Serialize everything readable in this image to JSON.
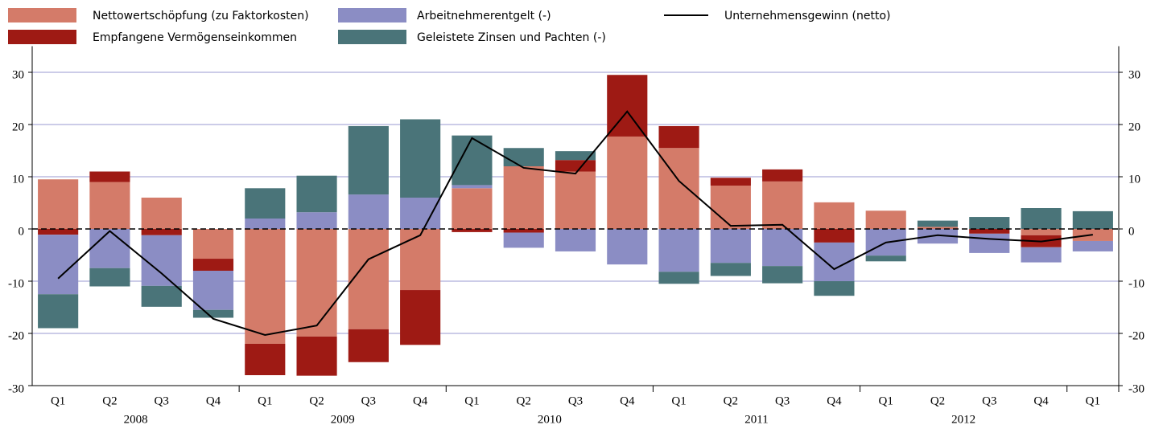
{
  "chart_data": {
    "type": "stacked-bar-line",
    "groups": [
      {
        "label": "2008",
        "categories": [
          "Q1",
          "Q2",
          "Q3",
          "Q4"
        ]
      },
      {
        "label": "2009",
        "categories": [
          "Q1",
          "Q2",
          "Q3",
          "Q4"
        ]
      },
      {
        "label": "2010",
        "categories": [
          "Q1",
          "Q2",
          "Q3",
          "Q4"
        ]
      },
      {
        "label": "2011",
        "categories": [
          "Q1",
          "Q2",
          "Q3",
          "Q4"
        ]
      },
      {
        "label": "2012",
        "categories": [
          "Q1",
          "Q2",
          "Q3",
          "Q4"
        ]
      },
      {
        "label": null,
        "categories": [
          "Q1"
        ]
      }
    ],
    "series": [
      {
        "name": "Nettowertschöpfung (zu Faktorkosten)",
        "color": "#d47b69",
        "kind": "bar",
        "values": [
          9.5,
          9,
          6,
          -5.7,
          -22,
          -20.6,
          -19.2,
          -11.7,
          7.8,
          12,
          11,
          17.7,
          15.5,
          8.3,
          9.1,
          5.1,
          3.5,
          0.4,
          0,
          -1.2,
          -2.3
        ]
      },
      {
        "name": "Empfangene Vermögenseinkommen",
        "color": "#9e1a14",
        "kind": "bar",
        "values": [
          -1.1,
          2,
          -1.2,
          -2.3,
          -6,
          -7.5,
          -6.3,
          -10.5,
          -0.6,
          -0.7,
          2.2,
          11.8,
          4.2,
          1.5,
          2.3,
          -2.6,
          0,
          0,
          -0.9,
          -2.3,
          0
        ]
      },
      {
        "name": "Arbeitnehmerentgelt (-)",
        "color": "#8b8dc4",
        "kind": "bar",
        "values": [
          -11.4,
          -7.5,
          -9.7,
          -7.5,
          2,
          3.2,
          6.6,
          6,
          0.6,
          -2.9,
          -4.3,
          -6.8,
          -8.2,
          -6.5,
          -7.1,
          -7.4,
          -5.1,
          -2.8,
          -3.7,
          -2.9,
          -2
        ]
      },
      {
        "name": "Geleistete Zinsen und Pachten (-)",
        "color": "#4a7479",
        "kind": "bar",
        "values": [
          -6.5,
          -3.5,
          -4,
          -1.5,
          5.8,
          7,
          13.1,
          15,
          9.5,
          3.5,
          1.7,
          0,
          -2.3,
          -2.5,
          -3.3,
          -2.8,
          -1.1,
          1.2,
          2.3,
          4,
          3.4
        ]
      },
      {
        "name": "Unternehmensgewinn (netto)",
        "color": "#000000",
        "kind": "line",
        "values": [
          -9.5,
          -0.4,
          -8.5,
          -17.2,
          -20.3,
          -18.5,
          -5.8,
          -1.2,
          17.4,
          11.7,
          10.6,
          22.5,
          9.2,
          0.6,
          0.8,
          -7.7,
          -2.6,
          -1.2,
          -1.9,
          -2.4,
          -1.1
        ]
      }
    ],
    "ylim": [
      -30,
      35
    ],
    "yticks": [
      -30,
      -20,
      -10,
      0,
      10,
      20,
      30
    ],
    "grid": true
  }
}
